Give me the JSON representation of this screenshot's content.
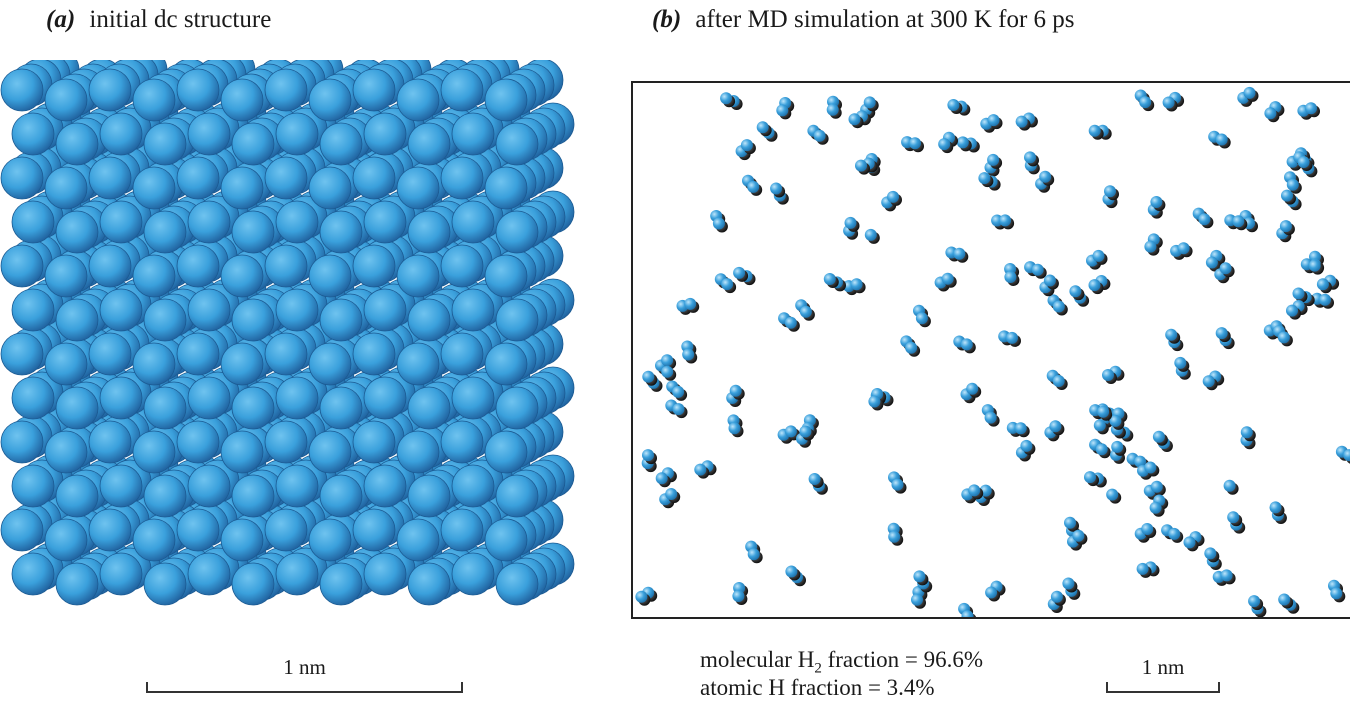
{
  "panel_a": {
    "tag": "(a)",
    "title": "initial dc structure",
    "scale_label": "1 nm",
    "sphere_color": "#3aa0dc"
  },
  "panel_b": {
    "tag": "(b)",
    "title": "after MD simulation at 300 K for 6 ps",
    "scale_label": "1 nm",
    "molecular_prefix": "molecular H",
    "molecular_sub": "2",
    "molecular_suffix": " fraction = 96.6%",
    "atomic_text": "atomic H fraction = 3.4%",
    "atom_color": "#3aa0dc",
    "shadow_color": "#1c1c1c"
  }
}
